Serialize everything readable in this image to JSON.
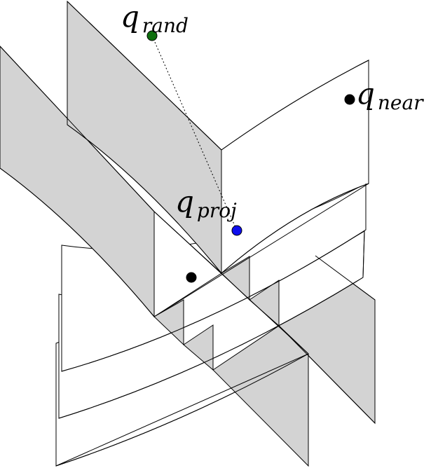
{
  "colors": {
    "gray_face": "#d3d3d3",
    "white_face": "#ffffff",
    "stroke": "#000000",
    "q_rand": "#0f6f0f",
    "q_proj": "#0f0fee",
    "q_near": "#000000",
    "intersection_point": "#000000"
  },
  "labels": {
    "q_rand_main": "q",
    "q_rand_sub": "rand",
    "q_near_main": "q",
    "q_near_sub": "near",
    "q_proj_main": "q",
    "q_proj_sub": "proj"
  }
}
